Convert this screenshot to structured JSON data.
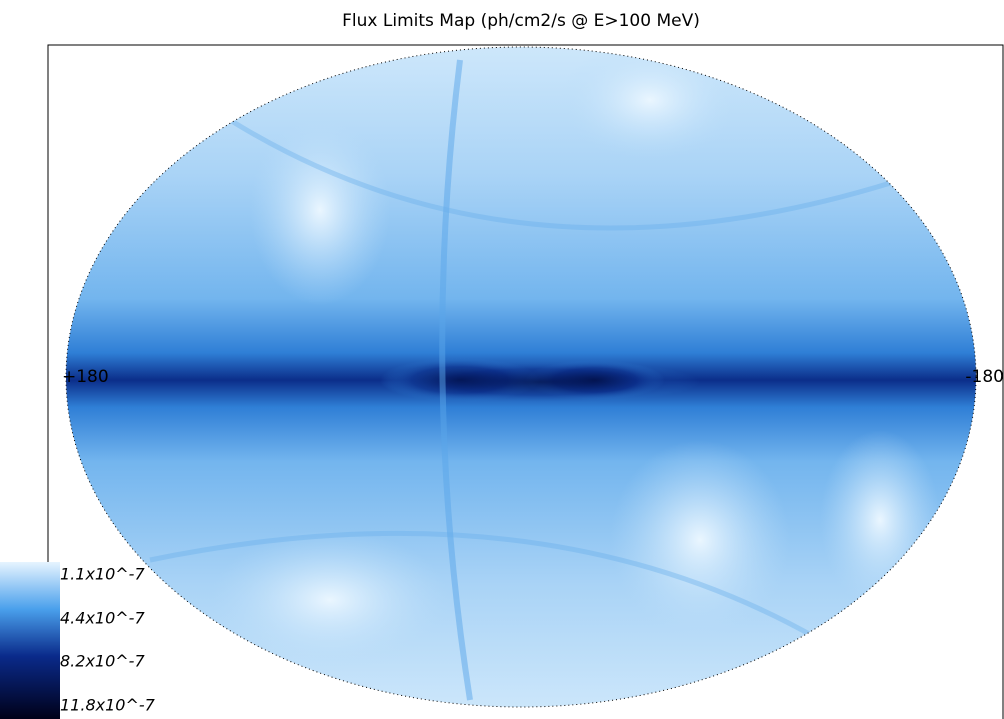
{
  "title": "Flux Limits Map (ph/cm2/s @ E>100 MeV)",
  "longitude_labels": {
    "left": "+180",
    "right": "-180"
  },
  "colorbar": {
    "labels": [
      "1.1x10^-7",
      "4.4x10^-7",
      "8.2x10^-7",
      "11.8x10^-7"
    ]
  }
}
